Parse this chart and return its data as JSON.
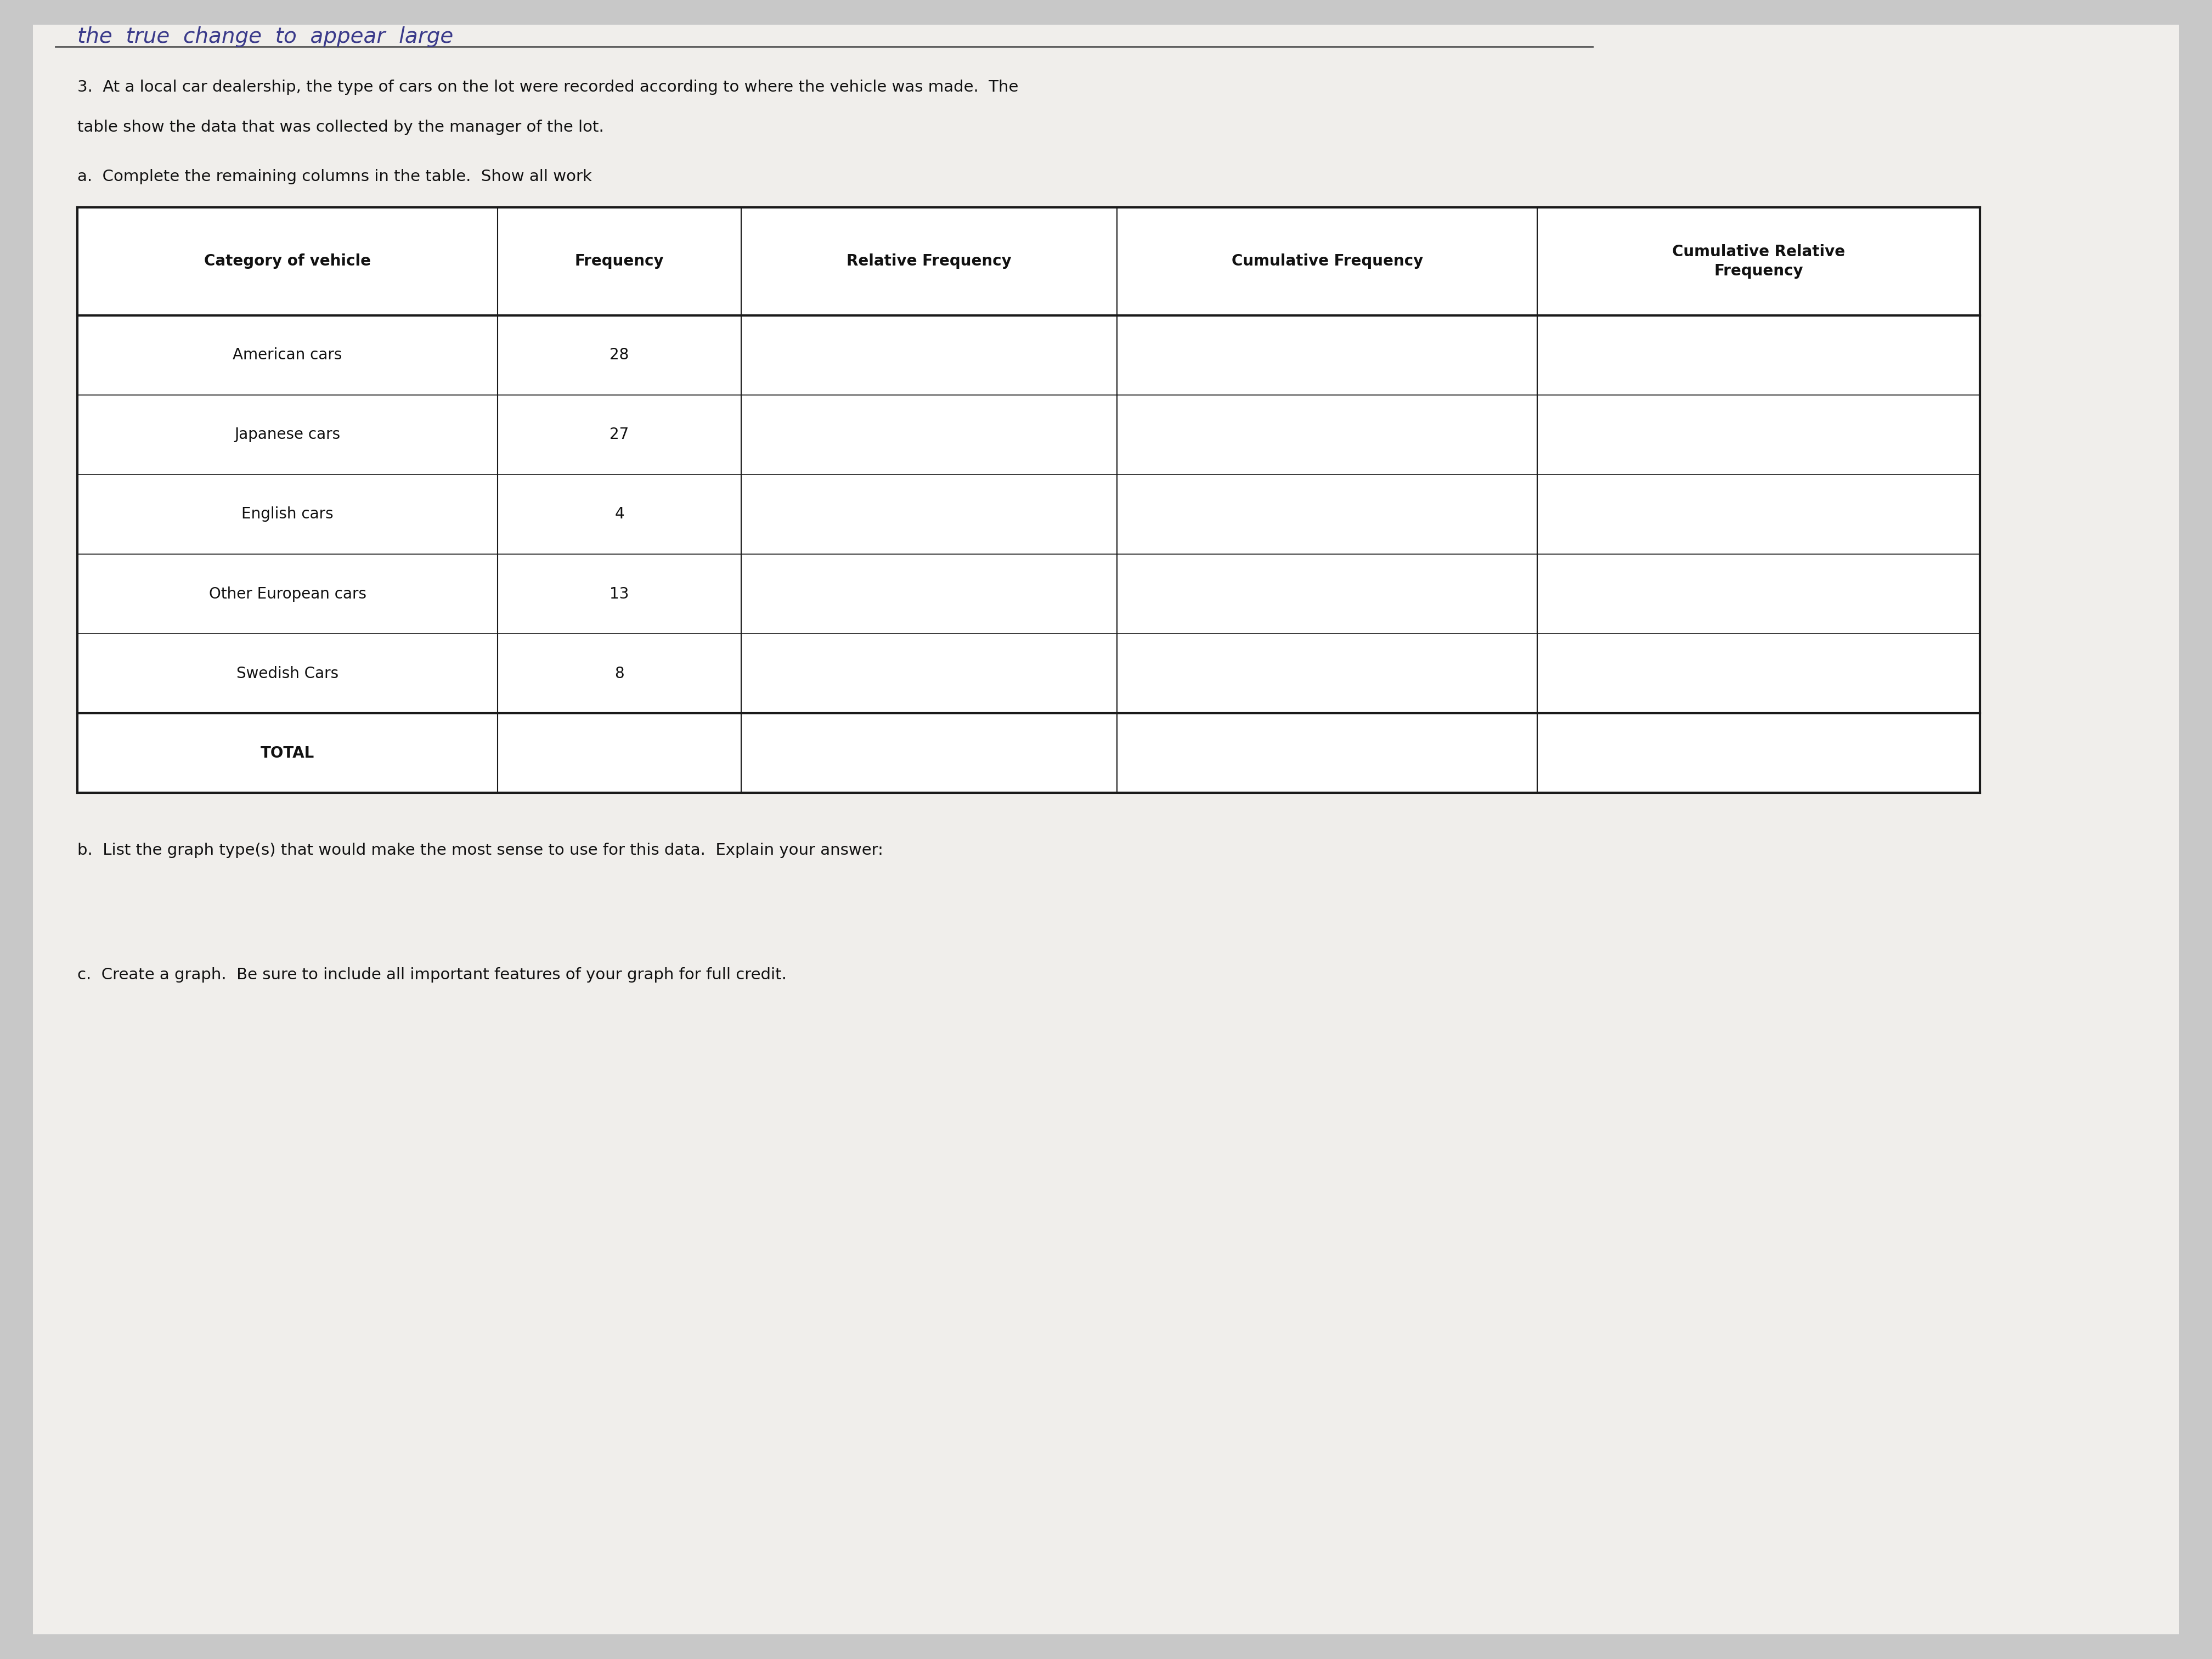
{
  "handwritten_text": "the  true  change  to  appear  large",
  "question_text_1": "3.  At a local car dealership, the type of cars on the lot were recorded according to where the vehicle was made.  The",
  "question_text_2": "table show the data that was collected by the manager of the lot.",
  "part_a_label": "a.  Complete the remaining columns in the table.  Show all work",
  "table_headers": [
    "Category of vehicle",
    "Frequency",
    "Relative Frequency",
    "Cumulative Frequency",
    "Cumulative Relative\nFrequency"
  ],
  "table_rows": [
    [
      "American cars",
      "28",
      "",
      "",
      ""
    ],
    [
      "Japanese cars",
      "27",
      "",
      "",
      ""
    ],
    [
      "English cars",
      "4",
      "",
      "",
      ""
    ],
    [
      "Other European cars",
      "13",
      "",
      "",
      ""
    ],
    [
      "Swedish Cars",
      "8",
      "",
      "",
      ""
    ],
    [
      "TOTAL",
      "",
      "",
      "",
      ""
    ]
  ],
  "part_b_label": "b.  List the graph type(s) that would make the most sense to use for this data.  Explain your answer:",
  "part_c_label": "c.  Create a graph.  Be sure to include all important features of your graph for full credit.",
  "bg_color": "#c8c8c8",
  "paper_color": "#f0eeeb",
  "text_color": "#111111",
  "table_line_color": "#1a1a1a",
  "handwritten_color": "#3a3a8a",
  "strikethrough_color": "#555555"
}
